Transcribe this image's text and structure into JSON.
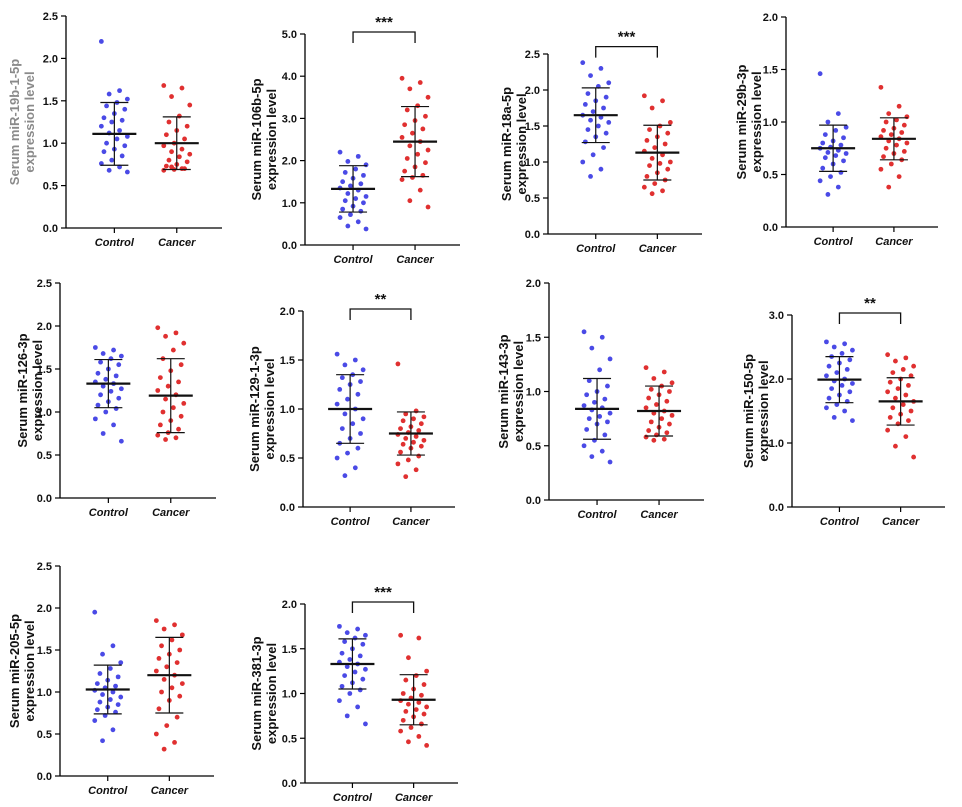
{
  "colors": {
    "control": "#4a4ae6",
    "cancer": "#e03030",
    "axis": "#000000",
    "first_label": "#8a8a8a"
  },
  "chart_data": [
    {
      "type": "scatter",
      "ylabel_line1": "Serum miR-19b-1-5p",
      "ylabel_line2": "expression level",
      "categories": [
        "Control",
        "Cancer"
      ],
      "ylim": [
        0,
        2.5
      ],
      "yticks": [
        "0.0",
        "0.5",
        "1.0",
        "1.5",
        "2.0",
        "2.5"
      ],
      "ytick_values": [
        0,
        0.5,
        1,
        1.5,
        2,
        2.5
      ],
      "significance": "",
      "groups": [
        {
          "name": "Control",
          "mean": 1.11,
          "sd": 0.37,
          "points": [
            2.2,
            1.62,
            1.58,
            1.52,
            1.48,
            1.44,
            1.4,
            1.35,
            1.3,
            1.27,
            1.25,
            1.2,
            1.15,
            1.12,
            1.08,
            1.05,
            1.0,
            0.97,
            0.93,
            0.9,
            0.85,
            0.8,
            0.76,
            0.72,
            0.68,
            0.66
          ]
        },
        {
          "name": "Cancer",
          "mean": 1.0,
          "sd": 0.31,
          "points": [
            1.68,
            1.65,
            1.55,
            1.45,
            1.32,
            1.25,
            1.2,
            1.15,
            1.1,
            1.05,
            1.0,
            0.97,
            0.93,
            0.9,
            0.87,
            0.84,
            0.8,
            0.78,
            0.75,
            0.73,
            0.7,
            0.69,
            0.68,
            0.7,
            0.72
          ]
        }
      ]
    },
    {
      "type": "scatter",
      "ylabel_line1": "Serum miR-106b-5p",
      "ylabel_line2": "expression level",
      "categories": [
        "Control",
        "Cancer"
      ],
      "ylim": [
        0,
        5
      ],
      "yticks": [
        "0.0",
        "1.0",
        "2.0",
        "3.0",
        "4.0",
        "5.0"
      ],
      "ytick_values": [
        0,
        1,
        2,
        3,
        4,
        5
      ],
      "significance": "***",
      "groups": [
        {
          "name": "Control",
          "mean": 1.33,
          "sd": 0.55,
          "points": [
            2.2,
            2.1,
            1.98,
            1.9,
            1.8,
            1.72,
            1.65,
            1.58,
            1.5,
            1.45,
            1.4,
            1.35,
            1.3,
            1.22,
            1.15,
            1.1,
            1.05,
            1.0,
            0.92,
            0.85,
            0.8,
            0.72,
            0.65,
            0.55,
            0.45,
            0.38
          ]
        },
        {
          "name": "Cancer",
          "mean": 2.45,
          "sd": 0.83,
          "points": [
            3.95,
            3.85,
            3.7,
            3.5,
            3.3,
            3.2,
            3.05,
            2.95,
            2.85,
            2.75,
            2.65,
            2.55,
            2.45,
            2.35,
            2.25,
            2.15,
            2.05,
            1.95,
            1.85,
            1.75,
            1.65,
            1.6,
            1.55,
            1.3,
            1.05,
            0.9
          ]
        }
      ]
    },
    {
      "type": "scatter",
      "ylabel_line1": "Serum miR-18a-5p",
      "ylabel_line2": "expression level",
      "categories": [
        "Control",
        "Cancer"
      ],
      "ylim": [
        0,
        2.5
      ],
      "yticks": [
        "0.0",
        "0.5",
        "1.0",
        "1.5",
        "2.0",
        "2.5"
      ],
      "ytick_values": [
        0,
        0.5,
        1,
        1.5,
        2,
        2.5
      ],
      "significance": "***",
      "groups": [
        {
          "name": "Control",
          "mean": 1.65,
          "sd": 0.38,
          "points": [
            2.38,
            2.3,
            2.2,
            2.1,
            2.05,
            1.95,
            1.9,
            1.85,
            1.8,
            1.75,
            1.7,
            1.65,
            1.62,
            1.58,
            1.55,
            1.5,
            1.45,
            1.4,
            1.35,
            1.28,
            1.2,
            1.1,
            1.0,
            0.9,
            0.8
          ]
        },
        {
          "name": "Cancer",
          "mean": 1.13,
          "sd": 0.38,
          "points": [
            1.92,
            1.85,
            1.75,
            1.55,
            1.5,
            1.45,
            1.4,
            1.35,
            1.3,
            1.25,
            1.2,
            1.15,
            1.1,
            1.05,
            1.0,
            0.98,
            0.95,
            0.9,
            0.85,
            0.8,
            0.75,
            0.7,
            0.65,
            0.6,
            0.56
          ]
        }
      ]
    },
    {
      "type": "scatter",
      "ylabel_line1": "Serum miR-29b-3p",
      "ylabel_line2": "expression level",
      "categories": [
        "Control",
        "Cancer"
      ],
      "ylim": [
        0,
        2
      ],
      "yticks": [
        "0.0",
        "0.5",
        "1.0",
        "1.5",
        "2.0"
      ],
      "ytick_values": [
        0,
        0.5,
        1,
        1.5,
        2
      ],
      "significance": "",
      "groups": [
        {
          "name": "Control",
          "mean": 0.75,
          "sd": 0.22,
          "points": [
            1.46,
            1.08,
            1.0,
            0.95,
            0.92,
            0.88,
            0.85,
            0.82,
            0.8,
            0.78,
            0.76,
            0.75,
            0.73,
            0.71,
            0.7,
            0.68,
            0.66,
            0.63,
            0.6,
            0.56,
            0.52,
            0.48,
            0.44,
            0.38,
            0.31
          ]
        },
        {
          "name": "Cancer",
          "mean": 0.84,
          "sd": 0.2,
          "points": [
            1.33,
            1.15,
            1.08,
            1.05,
            1.02,
            1.0,
            0.97,
            0.94,
            0.92,
            0.9,
            0.88,
            0.86,
            0.84,
            0.82,
            0.8,
            0.78,
            0.75,
            0.72,
            0.7,
            0.67,
            0.64,
            0.6,
            0.55,
            0.48,
            0.38
          ]
        }
      ]
    },
    {
      "type": "scatter",
      "ylabel_line1": "Serum miR-126-3p",
      "ylabel_line2": "expression level",
      "categories": [
        "Control",
        "Cancer"
      ],
      "ylim": [
        0,
        2.5
      ],
      "yticks": [
        "0.0",
        "0.5",
        "1.0",
        "1.5",
        "2.0",
        "2.5"
      ],
      "ytick_values": [
        0,
        0.5,
        1,
        1.5,
        2,
        2.5
      ],
      "significance": "",
      "groups": [
        {
          "name": "Control",
          "mean": 1.33,
          "sd": 0.28,
          "points": [
            1.75,
            1.72,
            1.68,
            1.65,
            1.62,
            1.58,
            1.55,
            1.5,
            1.45,
            1.42,
            1.38,
            1.35,
            1.33,
            1.3,
            1.27,
            1.24,
            1.2,
            1.16,
            1.12,
            1.08,
            1.04,
            1.0,
            0.92,
            0.85,
            0.75,
            0.66
          ]
        },
        {
          "name": "Cancer",
          "mean": 1.19,
          "sd": 0.43,
          "points": [
            1.98,
            1.92,
            1.88,
            1.8,
            1.72,
            1.62,
            1.55,
            1.48,
            1.4,
            1.35,
            1.3,
            1.25,
            1.2,
            1.15,
            1.1,
            1.05,
            1.0,
            0.95,
            0.9,
            0.85,
            0.8,
            0.76,
            0.73,
            0.7,
            0.68
          ]
        }
      ]
    },
    {
      "type": "scatter",
      "ylabel_line1": "Serum miR-129-1-3p",
      "ylabel_line2": "expression level",
      "categories": [
        "Control",
        "Cancer"
      ],
      "ylim": [
        0,
        2
      ],
      "yticks": [
        "0.0",
        "0.5",
        "1.0",
        "1.5",
        "2.0"
      ],
      "ytick_values": [
        0,
        0.5,
        1,
        1.5,
        2
      ],
      "significance": "**",
      "groups": [
        {
          "name": "Control",
          "mean": 1.0,
          "sd": 0.35,
          "points": [
            1.56,
            1.5,
            1.45,
            1.4,
            1.35,
            1.32,
            1.28,
            1.25,
            1.2,
            1.15,
            1.1,
            1.05,
            1.0,
            0.95,
            0.9,
            0.85,
            0.8,
            0.75,
            0.7,
            0.65,
            0.6,
            0.55,
            0.5,
            0.4,
            0.32
          ]
        },
        {
          "name": "Cancer",
          "mean": 0.75,
          "sd": 0.22,
          "points": [
            1.46,
            0.98,
            0.95,
            0.92,
            0.9,
            0.88,
            0.85,
            0.82,
            0.8,
            0.78,
            0.76,
            0.74,
            0.72,
            0.7,
            0.68,
            0.66,
            0.64,
            0.62,
            0.6,
            0.56,
            0.52,
            0.48,
            0.44,
            0.38,
            0.31
          ]
        }
      ]
    },
    {
      "type": "scatter",
      "ylabel_line1": "Serum miR-143-3p",
      "ylabel_line2": "expression level",
      "categories": [
        "Control",
        "Cancer"
      ],
      "ylim": [
        0,
        2
      ],
      "yticks": [
        "0.0",
        "0.5",
        "1.0",
        "1.5",
        "2.0"
      ],
      "ytick_values": [
        0,
        0.5,
        1,
        1.5,
        2
      ],
      "significance": "",
      "groups": [
        {
          "name": "Control",
          "mean": 0.84,
          "sd": 0.28,
          "points": [
            1.55,
            1.5,
            1.4,
            1.3,
            1.2,
            1.1,
            1.05,
            1.0,
            0.97,
            0.93,
            0.9,
            0.87,
            0.85,
            0.83,
            0.8,
            0.77,
            0.75,
            0.72,
            0.7,
            0.65,
            0.6,
            0.55,
            0.5,
            0.45,
            0.4,
            0.35
          ]
        },
        {
          "name": "Cancer",
          "mean": 0.82,
          "sd": 0.23,
          "points": [
            1.22,
            1.18,
            1.12,
            1.08,
            1.05,
            1.02,
            1.0,
            0.97,
            0.94,
            0.91,
            0.88,
            0.85,
            0.82,
            0.8,
            0.78,
            0.75,
            0.72,
            0.7,
            0.67,
            0.64,
            0.62,
            0.6,
            0.58,
            0.56,
            0.55
          ]
        }
      ]
    },
    {
      "type": "scatter",
      "ylabel_line1": "Serum miR-150-5p",
      "ylabel_line2": "expression level",
      "categories": [
        "Control",
        "Cancer"
      ],
      "ylim": [
        0,
        3
      ],
      "yticks": [
        "0.0",
        "1.0",
        "2.0",
        "3.0"
      ],
      "ytick_values": [
        0,
        1,
        2,
        3
      ],
      "significance": "**",
      "groups": [
        {
          "name": "Control",
          "mean": 1.99,
          "sd": 0.36,
          "points": [
            2.58,
            2.55,
            2.5,
            2.45,
            2.4,
            2.35,
            2.3,
            2.25,
            2.2,
            2.15,
            2.1,
            2.05,
            2.0,
            1.97,
            1.93,
            1.9,
            1.85,
            1.8,
            1.75,
            1.7,
            1.65,
            1.6,
            1.55,
            1.5,
            1.4,
            1.35
          ]
        },
        {
          "name": "Cancer",
          "mean": 1.65,
          "sd": 0.37,
          "points": [
            2.38,
            2.33,
            2.28,
            2.2,
            2.15,
            2.1,
            2.05,
            2.0,
            1.95,
            1.9,
            1.85,
            1.8,
            1.75,
            1.7,
            1.65,
            1.6,
            1.55,
            1.5,
            1.45,
            1.4,
            1.35,
            1.3,
            1.2,
            1.1,
            0.95,
            0.78
          ]
        }
      ]
    },
    {
      "type": "scatter",
      "ylabel_line1": "Serum miR-205-5p",
      "ylabel_line2": "expression level",
      "categories": [
        "Control",
        "Cancer"
      ],
      "ylim": [
        0,
        2.5
      ],
      "yticks": [
        "0.0",
        "0.5",
        "1.0",
        "1.5",
        "2.0",
        "2.5"
      ],
      "ytick_values": [
        0,
        0.5,
        1,
        1.5,
        2,
        2.5
      ],
      "significance": "",
      "groups": [
        {
          "name": "Control",
          "mean": 1.03,
          "sd": 0.29,
          "points": [
            1.95,
            1.55,
            1.45,
            1.35,
            1.28,
            1.22,
            1.18,
            1.14,
            1.1,
            1.07,
            1.05,
            1.02,
            1.0,
            0.97,
            0.94,
            0.91,
            0.88,
            0.85,
            0.82,
            0.79,
            0.76,
            0.72,
            0.66,
            0.55,
            0.42
          ]
        },
        {
          "name": "Cancer",
          "mean": 1.2,
          "sd": 0.45,
          "points": [
            1.85,
            1.8,
            1.75,
            1.68,
            1.62,
            1.55,
            1.5,
            1.45,
            1.4,
            1.35,
            1.3,
            1.25,
            1.2,
            1.15,
            1.1,
            1.05,
            1.0,
            0.95,
            0.9,
            0.8,
            0.7,
            0.6,
            0.5,
            0.4,
            0.32
          ]
        }
      ]
    },
    {
      "type": "scatter",
      "ylabel_line1": "Serum miR-381-3p",
      "ylabel_line2": "expression level",
      "categories": [
        "Control",
        "Cancer"
      ],
      "ylim": [
        0,
        2
      ],
      "yticks": [
        "0.0",
        "0.5",
        "1.0",
        "1.5",
        "2.0"
      ],
      "ytick_values": [
        0,
        0.5,
        1,
        1.5,
        2
      ],
      "significance": "***",
      "groups": [
        {
          "name": "Control",
          "mean": 1.33,
          "sd": 0.28,
          "points": [
            1.75,
            1.72,
            1.68,
            1.65,
            1.62,
            1.58,
            1.55,
            1.5,
            1.45,
            1.42,
            1.38,
            1.35,
            1.33,
            1.3,
            1.27,
            1.24,
            1.2,
            1.16,
            1.12,
            1.08,
            1.04,
            1.0,
            0.92,
            0.85,
            0.75,
            0.66
          ]
        },
        {
          "name": "Cancer",
          "mean": 0.93,
          "sd": 0.28,
          "points": [
            1.65,
            1.62,
            1.4,
            1.25,
            1.2,
            1.15,
            1.1,
            1.05,
            1.0,
            0.98,
            0.95,
            0.92,
            0.9,
            0.88,
            0.85,
            0.82,
            0.8,
            0.77,
            0.74,
            0.7,
            0.66,
            0.62,
            0.58,
            0.52,
            0.46,
            0.42
          ]
        }
      ]
    }
  ]
}
